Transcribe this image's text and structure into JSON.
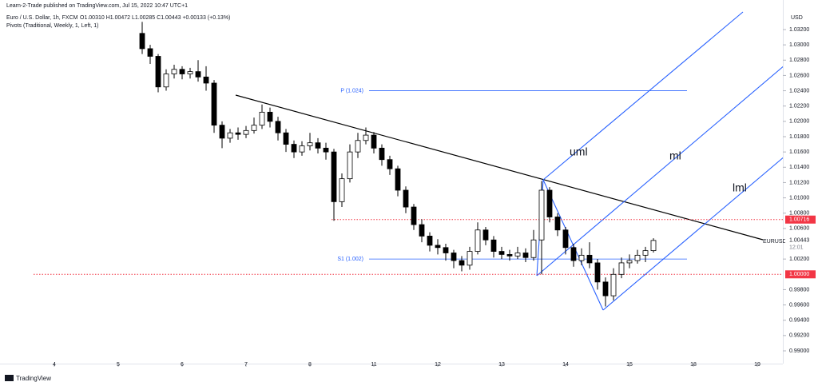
{
  "header": {
    "publisher": "Learn-2-Trade published on TradingView.com, Jul 15, 2022 10:47 UTC+1",
    "symbol": "Euro / U.S. Dollar, 1h, FXCM",
    "ohlc_text": "O1.00310 H1.00472 L1.00285 C1.00443 +0.00133 (+0.13%)",
    "indicator": "Pivots (Traditional, Weekly, 1, Left, 1)"
  },
  "footer": {
    "logo": "TradingView"
  },
  "chart_data": {
    "type": "candlestick",
    "currency": "USD",
    "colors": {
      "up": "#ffffff",
      "down": "#000000",
      "border": "#000000"
    },
    "xlim": [
      -0.85,
      11.4
    ],
    "xticks": [
      {
        "value": 0,
        "label": "4"
      },
      {
        "value": 1,
        "label": "5"
      },
      {
        "value": 2,
        "label": "6"
      },
      {
        "value": 3,
        "label": "7"
      },
      {
        "value": 4,
        "label": "8"
      },
      {
        "value": 5,
        "label": "11"
      },
      {
        "value": 6,
        "label": "12"
      },
      {
        "value": 7,
        "label": "13"
      },
      {
        "value": 8,
        "label": "14"
      },
      {
        "value": 9,
        "label": "15"
      },
      {
        "value": 10,
        "label": "18"
      },
      {
        "value": 11,
        "label": "19"
      }
    ],
    "ylim": [
      0.98833,
      1.03461
    ],
    "yticks": [
      {
        "value": 1.032,
        "label": "1.03200"
      },
      {
        "value": 1.03,
        "label": "1.03000"
      },
      {
        "value": 1.028,
        "label": "1.02800"
      },
      {
        "value": 1.026,
        "label": "1.02600"
      },
      {
        "value": 1.024,
        "label": "1.02400"
      },
      {
        "value": 1.022,
        "label": "1.02200"
      },
      {
        "value": 1.02,
        "label": "1.02000"
      },
      {
        "value": 1.018,
        "label": "1.01800"
      },
      {
        "value": 1.016,
        "label": "1.01600"
      },
      {
        "value": 1.014,
        "label": "1.01400"
      },
      {
        "value": 1.012,
        "label": "1.01200"
      },
      {
        "value": 1.01,
        "label": "1.01000"
      },
      {
        "value": 1.008,
        "label": "1.00800"
      },
      {
        "value": 1.006,
        "label": "1.00600"
      },
      {
        "value": 1.002,
        "label": "1.00200"
      },
      {
        "value": 0.998,
        "label": "0.99800"
      },
      {
        "value": 0.996,
        "label": "0.99600"
      },
      {
        "value": 0.994,
        "label": "0.99400"
      },
      {
        "value": 0.992,
        "label": "0.99200"
      },
      {
        "value": 0.99,
        "label": "0.99000"
      }
    ],
    "price_lines": [
      1.00716,
      {
        "value": 1,
        "label": "1.00000"
      }
    ],
    "last_price": 1.00443,
    "countdown": "12:01",
    "pivots": [
      {
        "label": "P (1.024)",
        "value": 1.024
      },
      {
        "label": "S1 (1.002)",
        "value": 1.002
      }
    ],
    "annotations": [
      "uml",
      "ml",
      "lml"
    ],
    "series": [
      {
        "name": "EURUSD",
        "x": [
          1.375,
          1.5,
          1.625,
          1.75,
          1.875,
          2,
          2.125,
          2.25,
          2.375,
          2.5,
          2.625,
          2.75,
          2.875,
          3,
          3.125,
          3.25,
          3.375,
          3.5,
          3.625,
          3.75,
          3.875,
          4,
          4.125,
          4.25,
          4.375,
          4.5,
          4.625,
          4.75,
          4.875,
          5,
          5.125,
          5.25,
          5.375,
          5.5,
          5.625,
          5.75,
          5.875,
          6,
          6.125,
          6.25,
          6.375,
          6.5,
          6.625,
          6.75,
          6.875,
          7,
          7.125,
          7.25,
          7.375,
          7.5,
          7.625,
          7.75,
          7.875,
          8,
          8.125,
          8.25,
          8.375,
          8.5,
          8.625,
          8.75,
          8.875,
          9,
          9.125,
          9.25,
          9.375
        ],
        "open": [
          1.0315,
          1.0295,
          1.0285,
          1.0245,
          1.0262,
          1.0268,
          1.0262,
          1.0265,
          1.0258,
          1.025,
          1.0195,
          1.0178,
          1.0185,
          1.0183,
          1.0188,
          1.0195,
          1.0212,
          1.02,
          1.0185,
          1.017,
          1.016,
          1.0168,
          1.0172,
          1.0165,
          1.016,
          1.0095,
          1.0125,
          1.016,
          1.0175,
          1.0182,
          1.0165,
          1.015,
          1.0138,
          1.011,
          1.0088,
          1.0065,
          1.005,
          1.0038,
          1.0035,
          1.0028,
          1.0018,
          1.0012,
          1.003,
          1.0058,
          1.0045,
          1.003,
          1.0026,
          1.0024,
          1.0028,
          1.0022,
          1.0045,
          1.011,
          1.0075,
          1.0058,
          1.0035,
          1.0018,
          1.0025,
          1.0015,
          0.999,
          0.9972,
          1.0,
          1.0015,
          1.0018,
          1.0025,
          1.0031
        ],
        "high": [
          1.033,
          1.03,
          1.0288,
          1.0268,
          1.0274,
          1.0272,
          1.027,
          1.028,
          1.0272,
          1.0254,
          1.02,
          1.019,
          1.0192,
          1.0194,
          1.0205,
          1.0222,
          1.0218,
          1.0206,
          1.019,
          1.0175,
          1.0174,
          1.0185,
          1.0178,
          1.0172,
          1.0164,
          1.0132,
          1.017,
          1.0185,
          1.0192,
          1.0186,
          1.017,
          1.0155,
          1.0142,
          1.0115,
          1.0092,
          1.0072,
          1.0055,
          1.0046,
          1.004,
          1.0032,
          1.0024,
          1.0036,
          1.0068,
          1.0062,
          1.005,
          1.0036,
          1.0032,
          1.0036,
          1.0034,
          1.0058,
          1.0122,
          1.0114,
          1.008,
          1.0062,
          1.004,
          1.0034,
          1.0042,
          1.002,
          0.9996,
          1.0008,
          1.0022,
          1.0026,
          1.0032,
          1.0036,
          1.00472
        ],
        "low": [
          1.0288,
          1.0275,
          1.0238,
          1.024,
          1.0256,
          1.0255,
          1.0256,
          1.0252,
          1.024,
          1.0185,
          1.0165,
          1.0172,
          1.0176,
          1.0178,
          1.0184,
          1.019,
          1.0192,
          1.0175,
          1.016,
          1.0152,
          1.0155,
          1.0162,
          1.0158,
          1.015,
          1.007,
          1.0088,
          1.012,
          1.0152,
          1.017,
          1.0158,
          1.0142,
          1.013,
          1.0102,
          1.008,
          1.0058,
          1.0042,
          1.003,
          1.0026,
          1.0018,
          1.0008,
          1.0004,
          1.0006,
          1.0026,
          1.0038,
          1.0022,
          1.002,
          1.0018,
          1.002,
          1.0016,
          1.0018,
          1.0,
          1.0068,
          1.005,
          1.0026,
          1.001,
          1.0012,
          1.0008,
          0.998,
          0.9958,
          0.9966,
          0.9995,
          1.0008,
          1.0014,
          1.0016,
          1.00285
        ],
        "close": [
          1.0295,
          1.0285,
          1.0245,
          1.0262,
          1.0268,
          1.0262,
          1.0265,
          1.0258,
          1.025,
          1.0195,
          1.0178,
          1.0185,
          1.0183,
          1.0188,
          1.0195,
          1.0212,
          1.02,
          1.0185,
          1.017,
          1.016,
          1.0168,
          1.0172,
          1.0165,
          1.016,
          1.0095,
          1.0125,
          1.016,
          1.0175,
          1.0182,
          1.0165,
          1.015,
          1.0138,
          1.011,
          1.0088,
          1.0065,
          1.005,
          1.0038,
          1.0035,
          1.0028,
          1.0018,
          1.0012,
          1.003,
          1.0058,
          1.0045,
          1.003,
          1.0026,
          1.0024,
          1.0028,
          1.0022,
          1.0045,
          1.011,
          1.0075,
          1.0058,
          1.0035,
          1.0018,
          1.0025,
          1.0015,
          0.999,
          0.9972,
          1.0,
          1.0015,
          1.0018,
          1.0025,
          1.0031,
          1.00443
        ]
      }
    ]
  }
}
